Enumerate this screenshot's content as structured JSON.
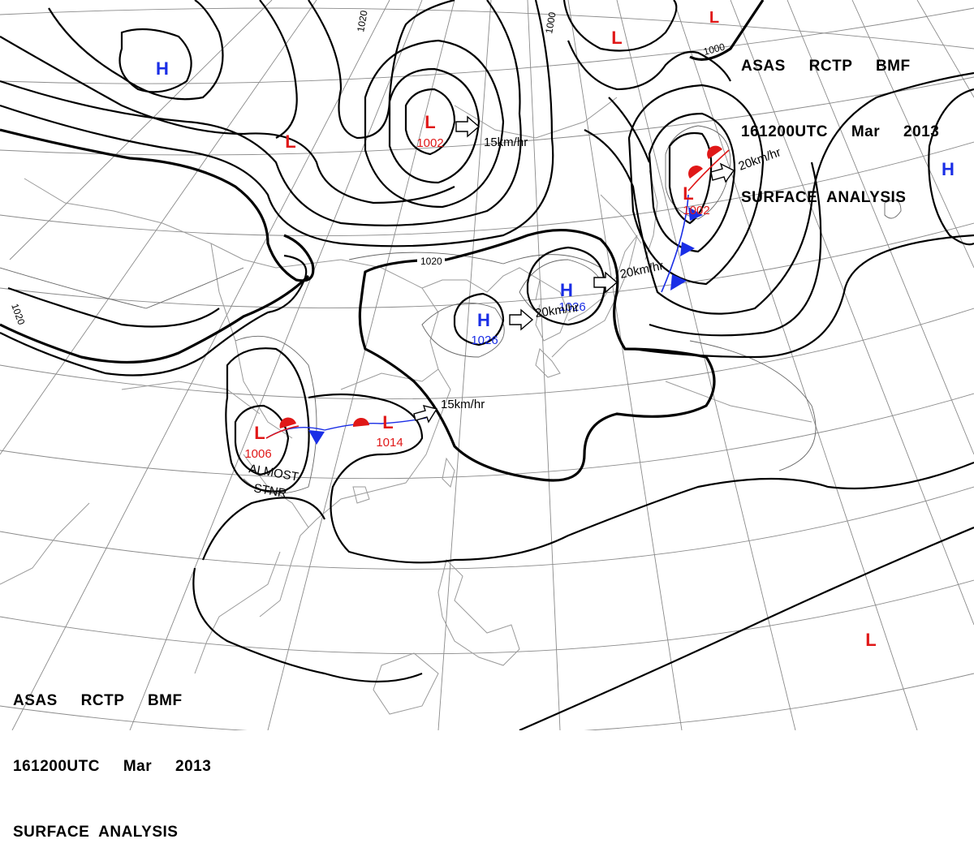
{
  "header_top": {
    "line1": "ASAS     RCTP     BMF",
    "line2": "161200UTC     Mar     2013",
    "line3": "SURFACE  ANALYSIS"
  },
  "header_bottom": {
    "line1": "ASAS     RCTP     BMF",
    "line2": "161200UTC     Mar     2013",
    "line3": "SURFACE  ANALYSIS"
  },
  "colors": {
    "high": "#1a2ee6",
    "low": "#e01818",
    "isobar": "#000000",
    "grid": "#888888",
    "coast": "#9a9a9a"
  },
  "pressure_systems": {
    "h_nw": {
      "type": "H",
      "value": ""
    },
    "l_north": {
      "type": "L",
      "value": "1002"
    },
    "l_nw": {
      "type": "L",
      "value": ""
    },
    "l_ne_top": {
      "type": "L",
      "value": ""
    },
    "l_ne_top2": {
      "type": "L",
      "value": ""
    },
    "l_ne": {
      "type": "L",
      "value": "1002"
    },
    "h_east": {
      "type": "H",
      "value": ""
    },
    "h_china": {
      "type": "H",
      "value": "1026"
    },
    "h_korea": {
      "type": "H",
      "value": "1026"
    },
    "l_sw": {
      "type": "L",
      "value": "1006"
    },
    "l_south": {
      "type": "L",
      "value": "1014"
    },
    "l_pacific": {
      "type": "L",
      "value": ""
    }
  },
  "movements": {
    "north": "15km/hr",
    "ne": "20km/hr",
    "korea": "20km/hr",
    "china": "20km/hr",
    "south": "15km/hr"
  },
  "annotations": {
    "stnr_line1": "ALMOST",
    "stnr_line2": "STNR"
  },
  "isobar_labels": {
    "a": "1020",
    "b": "1020",
    "c": "1020",
    "d": "1000",
    "e": "1000"
  }
}
